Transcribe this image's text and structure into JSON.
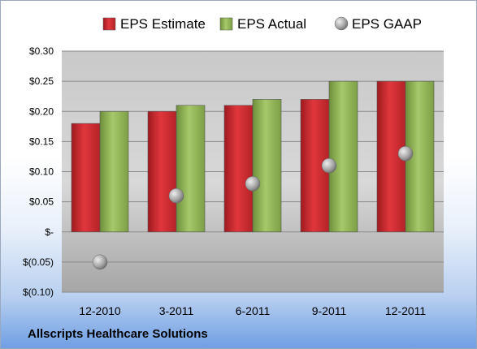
{
  "chart_data": {
    "type": "bar",
    "categories": [
      "12-2010",
      "3-2011",
      "6-2011",
      "9-2011",
      "12-2011"
    ],
    "series": [
      {
        "name": "EPS Estimate",
        "kind": "bar",
        "color": "#c0282d",
        "values": [
          0.18,
          0.2,
          0.21,
          0.22,
          0.25
        ]
      },
      {
        "name": "EPS Actual",
        "kind": "bar",
        "color": "#8fb552",
        "values": [
          0.2,
          0.21,
          0.22,
          0.25,
          0.25
        ]
      },
      {
        "name": "EPS GAAP",
        "kind": "scatter",
        "color": "#9a9a9a",
        "values": [
          -0.05,
          0.06,
          0.08,
          0.11,
          0.13
        ]
      }
    ],
    "ylim": [
      -0.1,
      0.3
    ],
    "yticks": [
      0.3,
      0.25,
      0.2,
      0.15,
      0.1,
      0.05,
      0,
      -0.05,
      -0.1
    ],
    "ytick_labels": [
      "$0.30",
      "$0.25",
      "$0.20",
      "$0.15",
      "$0.10",
      "$0.05",
      "$-",
      "$(0.05)",
      "$(0.10)"
    ],
    "grid": true,
    "legend_position": "top",
    "xlabel": "",
    "ylabel": ""
  },
  "company": "Allscripts Healthcare Solutions"
}
